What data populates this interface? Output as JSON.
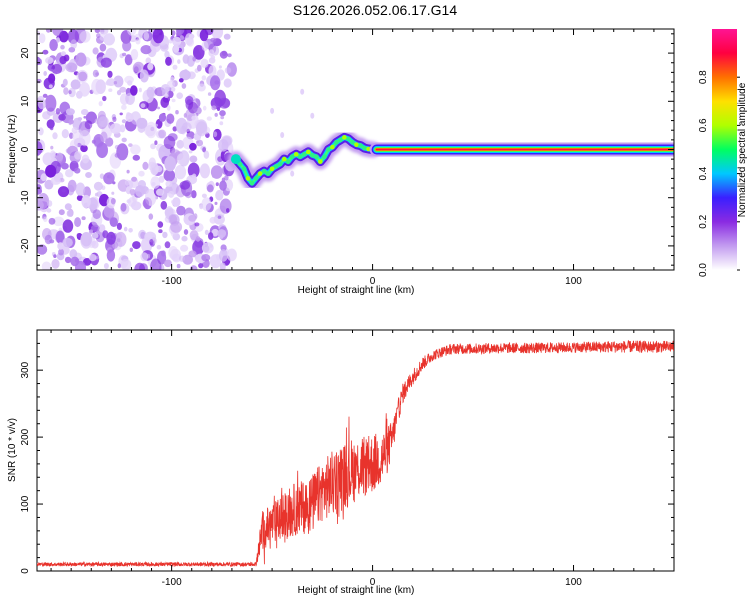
{
  "title": "S126.2026.052.06.17.G14",
  "chart_data": [
    {
      "type": "heatmap",
      "xlabel": "Height of straight line (km)",
      "ylabel": "Frequency (Hz)",
      "xlim": [
        -167,
        150
      ],
      "ylim": [
        -25,
        25
      ],
      "xticks": [
        -100,
        0,
        100
      ],
      "xtick_labels": [
        "-100",
        "0",
        "100"
      ],
      "yticks": [
        -20,
        -10,
        0,
        10,
        20
      ],
      "ytick_labels": [
        "-20",
        "-10",
        "0",
        "10",
        "20"
      ],
      "noise_region_x": [
        -167,
        -70
      ],
      "trace": {
        "x": [
          -68,
          -66,
          -64,
          -62,
          -60,
          -58,
          -56,
          -54,
          -52,
          -50,
          -48,
          -46,
          -44,
          -42,
          -40,
          -38,
          -36,
          -34,
          -32,
          -30,
          -28,
          -26,
          -24,
          -22,
          -20,
          -18,
          -16,
          -14,
          -12,
          -10,
          -8,
          -6,
          -4,
          -2,
          0
        ],
        "y": [
          -2,
          -3,
          -4,
          -6,
          -7,
          -6,
          -5,
          -4.5,
          -5,
          -4,
          -3.5,
          -3,
          -2,
          -2.5,
          -1.5,
          -1,
          -1.5,
          -1,
          -0.5,
          -1.2,
          -1.5,
          -2.5,
          -1.5,
          0,
          0.5,
          1.5,
          2,
          2.5,
          2.2,
          1.5,
          1,
          0.8,
          0.3,
          0.1,
          0
        ]
      },
      "constant_line": {
        "x": [
          2,
          150
        ],
        "y": 0
      },
      "colorbar": {
        "label": "Normalized spectral amplitude",
        "range": [
          0,
          1
        ],
        "ticks": [
          "0.0",
          "0.2",
          "0.4",
          "0.6",
          "0.8"
        ],
        "tick_values": [
          0,
          0.2,
          0.4,
          0.6,
          0.8
        ],
        "colors": [
          "#ffffff",
          "#c39cf0",
          "#8a2be2",
          "#3a1fff",
          "#00c8ff",
          "#00ff60",
          "#b0ff00",
          "#ffe000",
          "#ff7000",
          "#ff0040",
          "#ff1493"
        ]
      }
    },
    {
      "type": "line",
      "xlabel": "Height of straight line (km)",
      "ylabel": "SNR (10 * v/v)",
      "xlim": [
        -167,
        150
      ],
      "ylim": [
        0,
        360
      ],
      "xticks": [
        -100,
        0,
        100
      ],
      "xtick_labels": [
        "-100",
        "0",
        "100"
      ],
      "yticks": [
        0,
        100,
        200,
        300
      ],
      "ytick_labels": [
        "0",
        "100",
        "200",
        "300"
      ],
      "series": [
        {
          "name": "SNR",
          "color": "#e8332c",
          "x": [
            -167,
            -150,
            -130,
            -110,
            -90,
            -70,
            -58,
            -55,
            -50,
            -45,
            -40,
            -35,
            -30,
            -25,
            -20,
            -15,
            -10,
            -5,
            0,
            5,
            8,
            10,
            12,
            15,
            20,
            25,
            30,
            35,
            40,
            50,
            60,
            80,
            100,
            120,
            150
          ],
          "y": [
            10,
            10,
            10,
            10,
            10,
            10,
            10,
            60,
            70,
            80,
            90,
            95,
            100,
            120,
            130,
            140,
            150,
            155,
            160,
            170,
            185,
            200,
            230,
            265,
            290,
            310,
            322,
            328,
            332,
            332,
            333,
            333,
            334,
            335,
            335
          ],
          "noise": [
            3,
            3,
            3,
            3,
            3,
            3,
            3,
            30,
            30,
            35,
            40,
            40,
            45,
            45,
            50,
            50,
            50,
            45,
            45,
            40,
            35,
            25,
            20,
            15,
            12,
            10,
            8,
            8,
            8,
            8,
            8,
            8,
            8,
            9,
            9
          ]
        }
      ]
    }
  ]
}
